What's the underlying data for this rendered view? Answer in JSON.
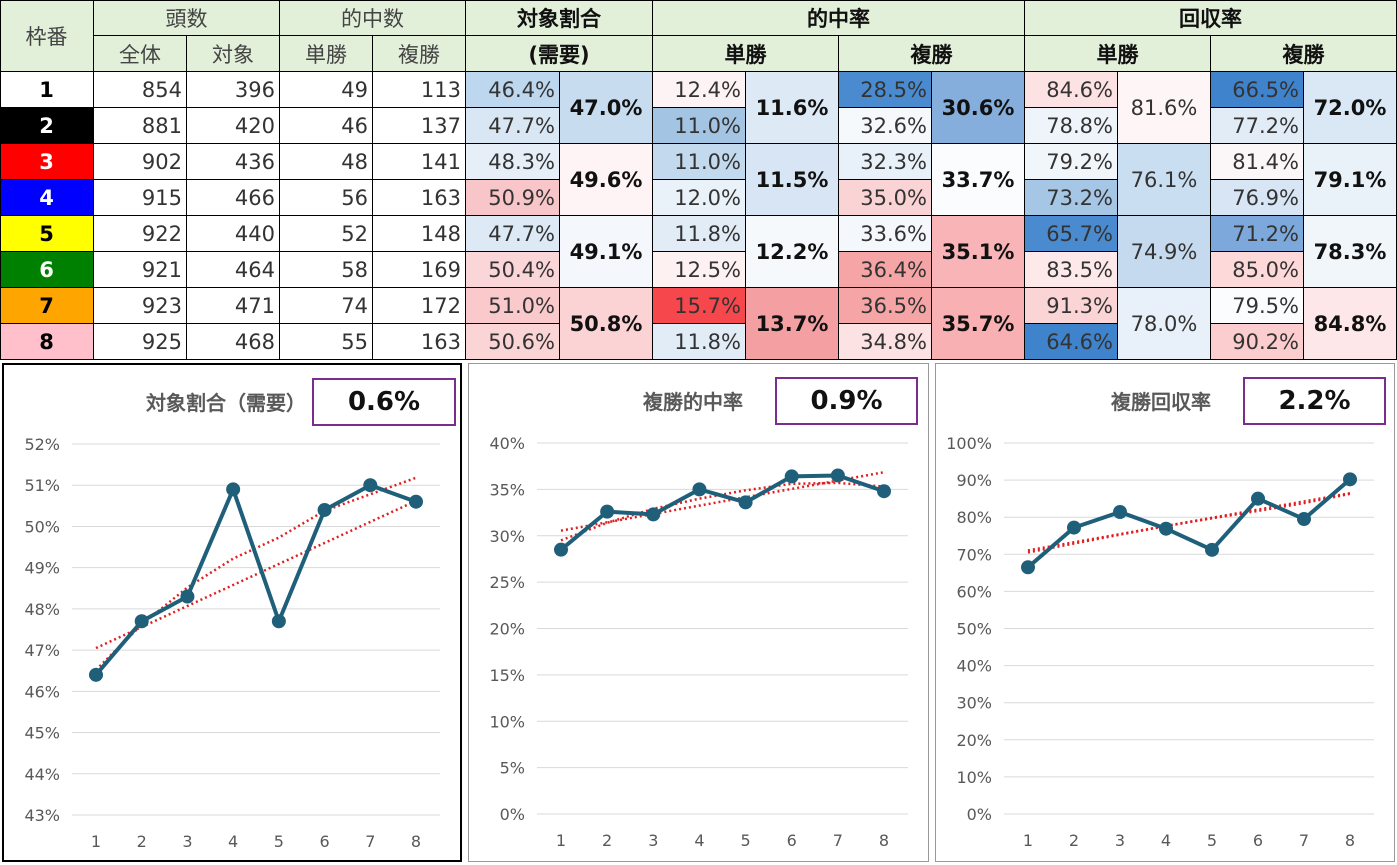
{
  "table": {
    "headers": {
      "waku": "枠番",
      "tosu": "頭数",
      "tosu_all": "全体",
      "tosu_target": "対象",
      "hits": "的中数",
      "hits_win": "単勝",
      "hits_place": "複勝",
      "share": "対象割合",
      "share_sub": "(需要)",
      "hitrate": "的中率",
      "hitrate_win": "単勝",
      "hitrate_place": "複勝",
      "recovery": "回収率",
      "recovery_win": "単勝",
      "recovery_place": "複勝"
    },
    "rows": [
      {
        "waku": "1",
        "all": "854",
        "target": "396",
        "win": "49",
        "place": "113",
        "share": "46.4%",
        "hr_win": "12.4%",
        "hr_place": "28.5%",
        "rc_win": "84.6%",
        "rc_place": "66.5%",
        "waku_bg": "#ffffff",
        "waku_fg": "#000000"
      },
      {
        "waku": "2",
        "all": "881",
        "target": "420",
        "win": "46",
        "place": "137",
        "share": "47.7%",
        "hr_win": "11.0%",
        "hr_place": "32.6%",
        "rc_win": "78.8%",
        "rc_place": "77.2%",
        "waku_bg": "#000000",
        "waku_fg": "#ffffff"
      },
      {
        "waku": "3",
        "all": "902",
        "target": "436",
        "win": "48",
        "place": "141",
        "share": "48.3%",
        "hr_win": "11.0%",
        "hr_place": "32.3%",
        "rc_win": "79.2%",
        "rc_place": "81.4%",
        "waku_bg": "#ff0000",
        "waku_fg": "#ffffff"
      },
      {
        "waku": "4",
        "all": "915",
        "target": "466",
        "win": "56",
        "place": "163",
        "share": "50.9%",
        "hr_win": "12.0%",
        "hr_place": "35.0%",
        "rc_win": "73.2%",
        "rc_place": "76.9%",
        "waku_bg": "#0000ff",
        "waku_fg": "#ffffff"
      },
      {
        "waku": "5",
        "all": "922",
        "target": "440",
        "win": "52",
        "place": "148",
        "share": "47.7%",
        "hr_win": "11.8%",
        "hr_place": "33.6%",
        "rc_win": "65.7%",
        "rc_place": "71.2%",
        "waku_bg": "#ffff00",
        "waku_fg": "#000000"
      },
      {
        "waku": "6",
        "all": "921",
        "target": "464",
        "win": "58",
        "place": "169",
        "share": "50.4%",
        "hr_win": "12.5%",
        "hr_place": "36.4%",
        "rc_win": "83.5%",
        "rc_place": "85.0%",
        "waku_bg": "#008000",
        "waku_fg": "#ffffff"
      },
      {
        "waku": "7",
        "all": "923",
        "target": "471",
        "win": "74",
        "place": "172",
        "share": "51.0%",
        "hr_win": "15.7%",
        "hr_place": "36.5%",
        "rc_win": "91.3%",
        "rc_place": "79.5%",
        "waku_bg": "#ffa500",
        "waku_fg": "#000000"
      },
      {
        "waku": "8",
        "all": "925",
        "target": "468",
        "win": "55",
        "place": "163",
        "share": "50.6%",
        "hr_win": "11.8%",
        "hr_place": "34.8%",
        "rc_win": "64.6%",
        "rc_place": "90.2%",
        "waku_bg": "#ffc0cb",
        "waku_fg": "#000000"
      }
    ],
    "pairs": [
      {
        "share": "47.0%",
        "hr_win": "11.6%",
        "hr_place": "30.6%",
        "rc_win": "81.6%",
        "rc_place": "72.0%"
      },
      {
        "share": "49.6%",
        "hr_win": "11.5%",
        "hr_place": "33.7%",
        "rc_win": "76.1%",
        "rc_place": "79.1%"
      },
      {
        "share": "49.1%",
        "hr_win": "12.2%",
        "hr_place": "35.1%",
        "rc_win": "74.9%",
        "rc_place": "78.3%"
      },
      {
        "share": "50.8%",
        "hr_win": "13.7%",
        "hr_place": "35.7%",
        "rc_win": "78.0%",
        "rc_place": "84.8%"
      }
    ],
    "colors": {
      "row_share": [
        "#bdd7ee",
        "#d9e7f4",
        "#e6eef8",
        "#f8c6c9",
        "#dde9f5",
        "#fbd6d8",
        "#f9c9cc",
        "#fbd4d6"
      ],
      "row_hr_win": [
        "#fdf3f4",
        "#a4c4e4",
        "#c3d9ee",
        "#e9f1f9",
        "#e2ecf7",
        "#fdf1f2",
        "#f5474c",
        "#e2ecf7"
      ],
      "row_hr_place": [
        "#4a8bd0",
        "#f6f9fc",
        "#e8f0f9",
        "#fad3d5",
        "#f4f8fc",
        "#f6a5a6",
        "#f6a5a6",
        "#fce2e3"
      ],
      "row_rc_win": [
        "#fde2e3",
        "#eef4fa",
        "#f1f6fb",
        "#a6c6e5",
        "#4a8bd0",
        "#fde9ea",
        "#fbd4d6",
        "#3e83cc"
      ],
      "row_rc_place": [
        "#3e83cc",
        "#e2ecf7",
        "#fbf7f8",
        "#d7e5f4",
        "#7ca8db",
        "#fdd9da",
        "#fbfcfe",
        "#fccdcf"
      ],
      "pair_share": [
        "#c8dcf0",
        "#fef4f5",
        "#f4f8fc",
        "#fbd3d5"
      ],
      "pair_hr_win": [
        "#dde9f5",
        "#d7e5f4",
        "#f5f9fc",
        "#f4a0a3"
      ],
      "pair_hr_place": [
        "#86aedc",
        "#fafcfe",
        "#f8b4b6",
        "#f8b0b2"
      ],
      "pair_rc_win": [
        "#fef5f6",
        "#cadef1",
        "#c5daee",
        "#e8f0f9"
      ],
      "pair_rc_place": [
        "#dae7f4",
        "#e9f1f9",
        "#f1f6fb",
        "#fde7e8"
      ]
    }
  },
  "panels": [
    {
      "title": "対象割合（需要）",
      "value": "0.6%"
    },
    {
      "title": "複勝的中率",
      "value": "0.9%"
    },
    {
      "title": "複勝回収率",
      "value": "2.2%"
    }
  ],
  "chart_data": [
    {
      "type": "line",
      "title": "対象割合（需要）",
      "categories": [
        "1",
        "2",
        "3",
        "4",
        "5",
        "6",
        "7",
        "8"
      ],
      "values": [
        46.4,
        47.7,
        48.3,
        50.9,
        47.7,
        50.4,
        51.0,
        50.6
      ],
      "ylim": [
        43,
        52
      ],
      "ystep": 1,
      "ytick_labels": [
        "43%",
        "44%",
        "45%",
        "46%",
        "47%",
        "48%",
        "49%",
        "50%",
        "51%",
        "52%"
      ],
      "trend_linear": [
        47.05,
        47.56,
        48.07,
        48.58,
        49.09,
        49.6,
        50.11,
        50.62
      ],
      "trend_poly": [
        46.52,
        47.62,
        48.52,
        49.22,
        49.73,
        50.38,
        50.78,
        51.18
      ],
      "grid": true,
      "series_color": "#1f5f7a",
      "trend_color": "#e02020"
    },
    {
      "type": "line",
      "title": "複勝的中率",
      "categories": [
        "1",
        "2",
        "3",
        "4",
        "5",
        "6",
        "7",
        "8"
      ],
      "values": [
        28.5,
        32.6,
        32.3,
        35.0,
        33.6,
        36.4,
        36.5,
        34.8
      ],
      "ylim": [
        0,
        40
      ],
      "ystep": 5,
      "ytick_labels": [
        "0%",
        "5%",
        "10%",
        "15%",
        "20%",
        "25%",
        "30%",
        "35%",
        "40%"
      ],
      "trend_linear": [
        30.55,
        31.45,
        32.35,
        33.25,
        34.15,
        35.05,
        35.95,
        36.85
      ],
      "trend_poly": [
        29.5,
        31.4,
        32.9,
        34.0,
        34.9,
        35.6,
        35.7,
        35.3
      ],
      "grid": true,
      "series_color": "#1f5f7a",
      "trend_color": "#e02020"
    },
    {
      "type": "line",
      "title": "複勝回収率",
      "categories": [
        "1",
        "2",
        "3",
        "4",
        "5",
        "6",
        "7",
        "8"
      ],
      "values": [
        66.5,
        77.2,
        81.4,
        76.9,
        71.2,
        85.0,
        79.5,
        90.2
      ],
      "ylim": [
        0,
        100
      ],
      "ystep": 10,
      "ytick_labels": [
        "0%",
        "10%",
        "20%",
        "30%",
        "40%",
        "50%",
        "60%",
        "70%",
        "80%",
        "90%",
        "100%"
      ],
      "trend_linear": [
        71.05,
        73.25,
        75.45,
        77.65,
        79.85,
        82.05,
        84.25,
        86.45
      ],
      "trend_poly": [
        70.5,
        72.9,
        75.3,
        77.6,
        79.7,
        81.7,
        83.8,
        86.3
      ],
      "grid": true,
      "series_color": "#1f5f7a",
      "trend_color": "#e02020"
    }
  ]
}
